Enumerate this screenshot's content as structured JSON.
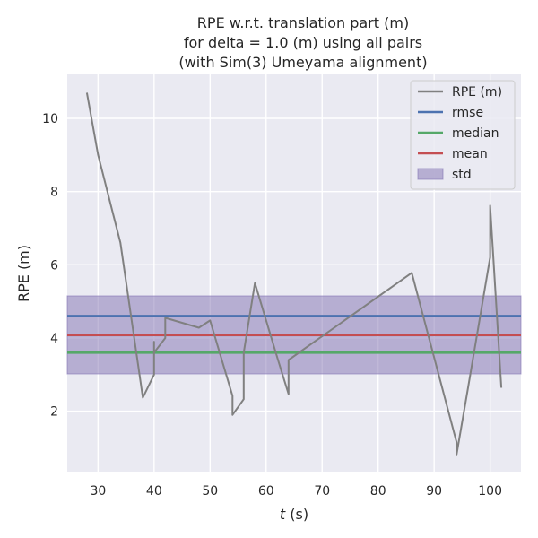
{
  "chart_data": {
    "type": "line",
    "title_lines": [
      "RPE w.r.t. translation part (m)",
      "for delta = 1.0 (m) using all pairs",
      "(with Sim(3) Umeyama alignment)"
    ],
    "xlabel_var": "t",
    "xlabel_unit": " (s)",
    "ylabel": "RPE (m)",
    "xlim": [
      24.5,
      105.5
    ],
    "ylim": [
      0.35,
      11.2
    ],
    "xticks": [
      30,
      40,
      50,
      60,
      70,
      80,
      90,
      100
    ],
    "yticks": [
      2,
      4,
      6,
      8,
      10
    ],
    "grid": true,
    "legend_position": "top-right",
    "series": [
      {
        "name": "RPE (m)",
        "color": "#808080",
        "x": [
          28,
          30,
          34,
          38,
          40,
          40,
          40,
          42,
          42,
          48,
          50,
          54,
          54,
          56,
          56,
          58,
          62,
          64,
          64,
          86,
          94,
          94,
          96,
          100,
          100,
          102
        ],
        "y": [
          10.7,
          9.0,
          6.6,
          2.37,
          3.0,
          3.9,
          3.6,
          4.0,
          4.55,
          4.28,
          4.48,
          2.42,
          1.9,
          2.33,
          3.6,
          5.5,
          3.46,
          2.47,
          3.4,
          5.78,
          1.15,
          0.82,
          2.6,
          6.2,
          7.62,
          2.64
        ]
      }
    ],
    "stats": {
      "rmse": 4.6,
      "median": 3.6,
      "mean": 4.08,
      "std_range": [
        3.02,
        5.15
      ]
    },
    "legend": [
      "RPE (m)",
      "rmse",
      "median",
      "mean",
      "std"
    ],
    "colors": {
      "plot_bg": "#eaeaf2",
      "grid": "#ffffff",
      "rmse": "#4c72b0",
      "median": "#55a868",
      "mean": "#c44e52",
      "std_fill": "#8172b2"
    }
  }
}
